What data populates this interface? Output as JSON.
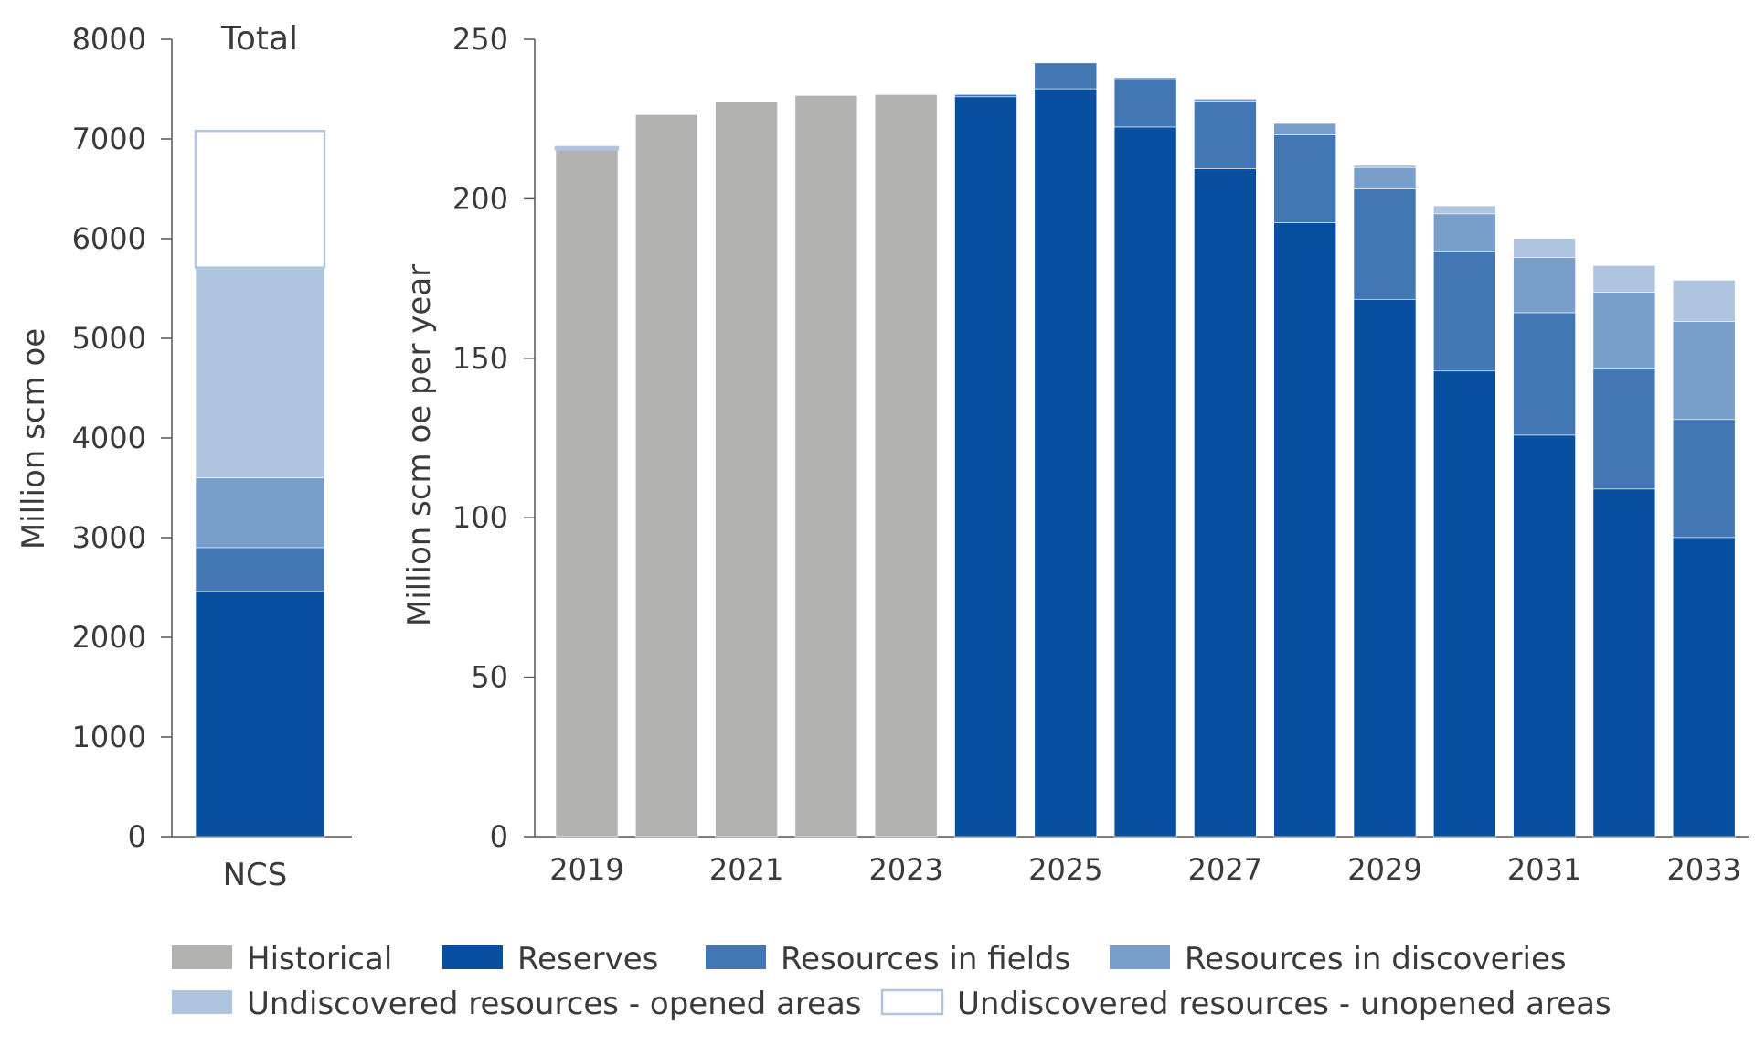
{
  "legend": {
    "position": "bottom",
    "items": [
      {
        "key": "historical",
        "label": "Historical",
        "color": "#b2b2b1"
      },
      {
        "key": "reserves",
        "label": "Reserves",
        "color": "#08509f"
      },
      {
        "key": "fields",
        "label": "Resources in fields",
        "color": "#4377b4"
      },
      {
        "key": "discoveries",
        "label": "Resources in discoveries",
        "color": "#789ec9"
      },
      {
        "key": "undisc_open",
        "label": "Undiscovered resources - opened areas",
        "color": "#aec4df"
      },
      {
        "key": "undisc_unopened",
        "label": "Undiscovered resources - unopened areas",
        "color": "#ffffff",
        "outline": "#aec4df"
      }
    ]
  },
  "chart_data": [
    {
      "type": "bar",
      "stacked": true,
      "title": "Total",
      "ylabel": "Million scm oe",
      "ylim": [
        0,
        8000
      ],
      "yticks": [
        "0",
        "1000",
        "2000",
        "3000",
        "4000",
        "5000",
        "6000",
        "7000",
        "8000"
      ],
      "categories": [
        "NCS"
      ],
      "series": [
        {
          "key": "reserves",
          "values": [
            2460
          ]
        },
        {
          "key": "fields",
          "values": [
            440
          ]
        },
        {
          "key": "discoveries",
          "values": [
            700
          ]
        },
        {
          "key": "undisc_open",
          "values": [
            2110
          ]
        },
        {
          "key": "undisc_unopened",
          "values": [
            1370
          ]
        }
      ]
    },
    {
      "type": "bar",
      "stacked": true,
      "ylabel": "Million scm oe per year",
      "ylim": [
        0,
        250
      ],
      "yticks": [
        "0",
        "50",
        "100",
        "150",
        "200",
        "250"
      ],
      "categories": [
        "2019",
        "2020",
        "2021",
        "2022",
        "2023",
        "2024",
        "2025",
        "2026",
        "2027",
        "2028",
        "2029",
        "2030",
        "2031",
        "2032",
        "2033"
      ],
      "xtick_labels": [
        "2019",
        "",
        "2021",
        "",
        "2023",
        "",
        "2025",
        "",
        "2027",
        "",
        "2029",
        "",
        "2031",
        "",
        "2033"
      ],
      "series": [
        {
          "key": "historical",
          "values": [
            215.5,
            226.4,
            230.3,
            232.4,
            232.7,
            0,
            0,
            0,
            0,
            0,
            0,
            0,
            0,
            0,
            0
          ]
        },
        {
          "key": "reserves",
          "values": [
            0,
            0,
            0,
            0,
            0,
            232,
            234.5,
            222.5,
            209.4,
            192.5,
            168.5,
            146,
            125.9,
            109,
            93.8
          ]
        },
        {
          "key": "fields",
          "values": [
            0,
            0,
            0,
            0,
            0,
            0.7,
            8.1,
            14.8,
            20.9,
            27.5,
            34.6,
            37.4,
            38.4,
            37.7,
            37
          ]
        },
        {
          "key": "discoveries",
          "values": [
            0,
            0,
            0,
            0,
            0,
            0,
            0,
            0.7,
            1,
            3.6,
            6.7,
            11.9,
            17.3,
            24,
            30.7
          ]
        },
        {
          "key": "undisc_open",
          "values": [
            0,
            0,
            0,
            0,
            0,
            0,
            0,
            0,
            0,
            0,
            0.7,
            2.5,
            6,
            8.4,
            13
          ]
        },
        {
          "key": "undisc_unopened",
          "values": [
            0.7,
            0,
            0,
            0,
            0,
            0,
            0,
            0,
            0,
            0,
            0,
            0,
            0,
            0,
            0
          ]
        }
      ]
    }
  ]
}
